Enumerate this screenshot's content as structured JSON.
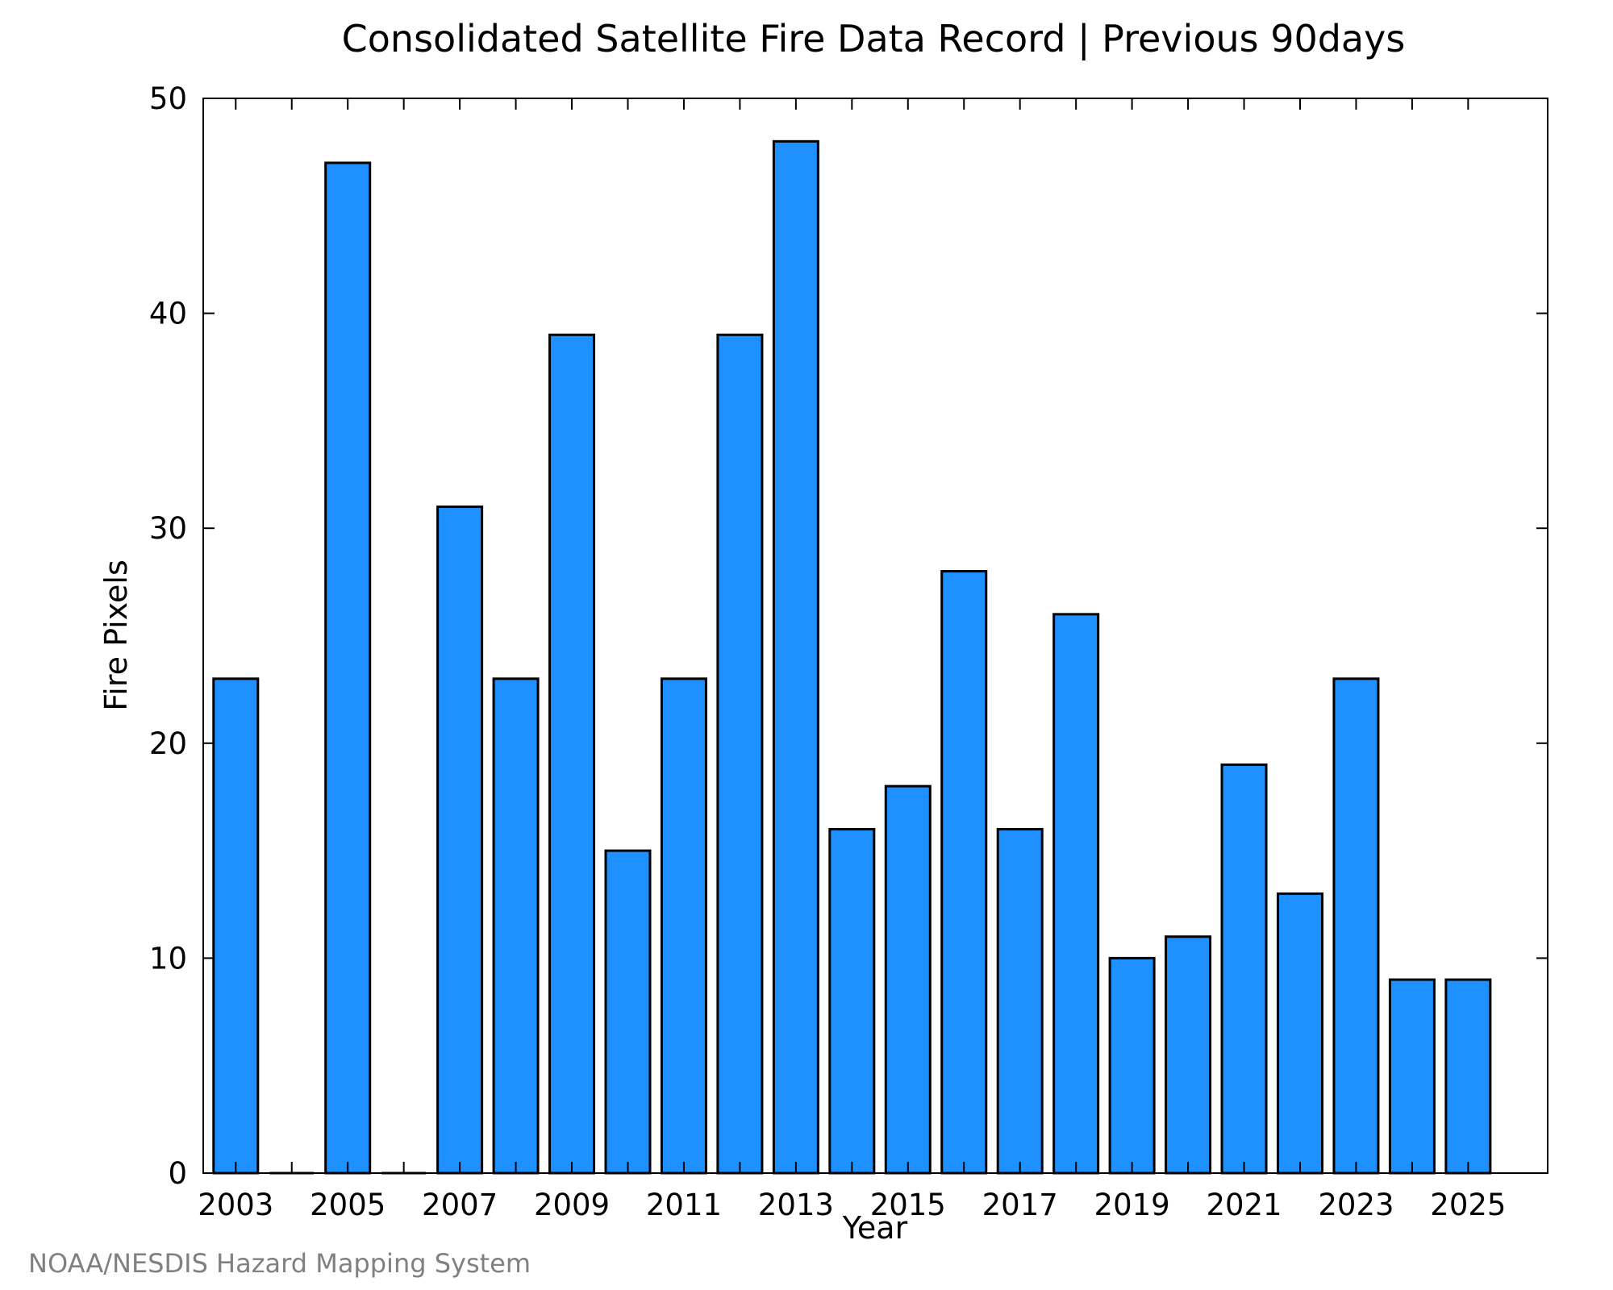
{
  "chart_data": {
    "type": "bar",
    "title": "Consolidated Satellite Fire Data Record | Previous 90days",
    "xlabel": "Year",
    "ylabel": "Fire Pixels",
    "categories": [
      2003,
      2004,
      2005,
      2006,
      2007,
      2008,
      2009,
      2010,
      2011,
      2012,
      2013,
      2014,
      2015,
      2016,
      2017,
      2018,
      2019,
      2020,
      2021,
      2022,
      2023,
      2024,
      2025
    ],
    "values": [
      23,
      0,
      47,
      0,
      31,
      23,
      39,
      15,
      23,
      39,
      48,
      16,
      18,
      28,
      16,
      26,
      10,
      11,
      19,
      13,
      23,
      9,
      9
    ],
    "x_tick_labels": [
      "2003",
      "2005",
      "2007",
      "2009",
      "2011",
      "2013",
      "2015",
      "2017",
      "2019",
      "2021",
      "2023",
      "2025"
    ],
    "y_tick_labels": [
      "0",
      "10",
      "20",
      "30",
      "40",
      "50"
    ],
    "ylim": [
      0,
      50
    ],
    "grid": false,
    "bar_color": "#1e90ff"
  },
  "credit": "NOAA/NESDIS Hazard Mapping System"
}
